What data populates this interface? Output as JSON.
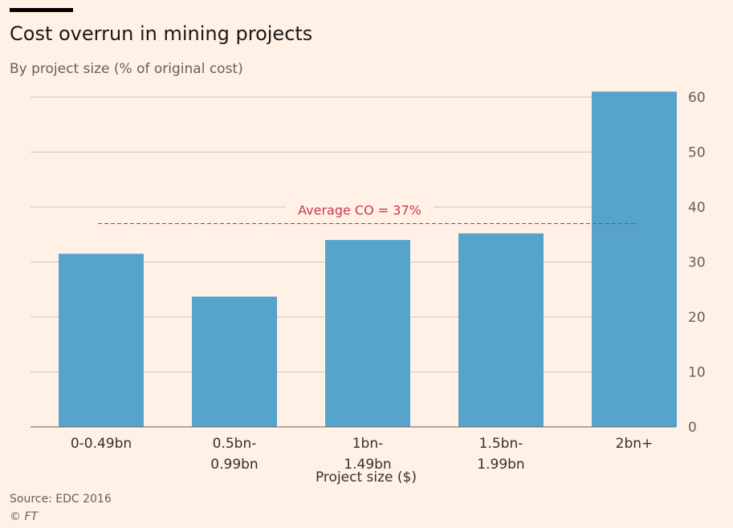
{
  "title": "Cost overrun in mining projects",
  "subtitle": "By project size (% of original cost)",
  "source": "Source: EDC 2016",
  "credit": "© FT",
  "colors": {
    "background": "#fff1e5",
    "bar": "#56a4cb",
    "average_line": "#c9394d",
    "gridline": "#cec6b9"
  },
  "chart_data": {
    "type": "bar",
    "title": "Cost overrun in mining projects",
    "subtitle": "By project size (% of original cost)",
    "xlabel": "Project size ($)",
    "ylabel": "",
    "categories": [
      "0-0.49bn",
      "0.5bn-0.99bn",
      "1bn-1.49bn",
      "1.5bn-1.99bn",
      "2bn+"
    ],
    "category_label_lines": [
      [
        "0-0.49bn"
      ],
      [
        "0.5bn-",
        "0.99bn"
      ],
      [
        "1bn-",
        "1.49bn"
      ],
      [
        "1.5bn-",
        "1.99bn"
      ],
      [
        "2bn+"
      ]
    ],
    "values": [
      31.5,
      23.7,
      34,
      35.2,
      61
    ],
    "ylim": [
      0,
      60
    ],
    "yticks": [
      0,
      10,
      20,
      30,
      40,
      50,
      60
    ],
    "y_axis_side": "right",
    "grid": true,
    "annotations": [
      {
        "label": "Average CO = 37%",
        "value": 37,
        "style": "dashed"
      }
    ]
  }
}
